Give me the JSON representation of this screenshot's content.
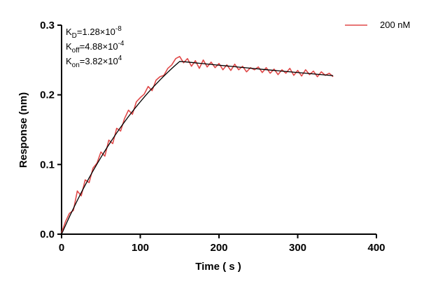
{
  "chart_data": {
    "type": "line",
    "x_label": "Time ( s )",
    "y_label": "Response (nm)",
    "xlim": [
      0,
      400
    ],
    "xticks": [
      0,
      100,
      200,
      300,
      400
    ],
    "ylim": [
      0,
      0.3
    ],
    "yticks": [
      {
        "value": 0,
        "label": "0.0"
      },
      0.1,
      0.2,
      0.3
    ],
    "legend": "upper right",
    "annotations": [
      {
        "symbol": "K",
        "subscript": "D",
        "text": "=1.28×10",
        "superscript": "-8"
      },
      {
        "symbol": "K",
        "subscript": "off",
        "text": "=4.88×10",
        "superscript": "-4"
      },
      {
        "symbol": "K",
        "subscript": "on",
        "text": "=3.82×10",
        "superscript": "4"
      }
    ],
    "x": [
      0,
      5,
      10,
      15,
      20,
      25,
      30,
      35,
      40,
      45,
      50,
      55,
      60,
      65,
      70,
      75,
      80,
      85,
      90,
      95,
      100,
      105,
      110,
      115,
      120,
      125,
      130,
      135,
      140,
      145,
      150,
      155,
      160,
      165,
      170,
      175,
      180,
      185,
      190,
      195,
      200,
      205,
      210,
      215,
      220,
      225,
      230,
      235,
      240,
      245,
      250,
      255,
      260,
      265,
      270,
      275,
      280,
      285,
      290,
      295,
      300,
      305,
      310,
      315,
      320,
      325,
      330,
      335,
      340,
      345
    ],
    "series": [
      {
        "name": "200 nM",
        "color": "#e04848",
        "values": [
          0.002,
          0.018,
          0.03,
          0.034,
          0.062,
          0.055,
          0.078,
          0.074,
          0.095,
          0.102,
          0.118,
          0.112,
          0.135,
          0.13,
          0.152,
          0.148,
          0.166,
          0.178,
          0.172,
          0.19,
          0.196,
          0.201,
          0.212,
          0.206,
          0.221,
          0.226,
          0.228,
          0.238,
          0.243,
          0.252,
          0.255,
          0.246,
          0.252,
          0.241,
          0.249,
          0.238,
          0.25,
          0.24,
          0.247,
          0.239,
          0.245,
          0.236,
          0.243,
          0.235,
          0.244,
          0.236,
          0.241,
          0.233,
          0.239,
          0.236,
          0.24,
          0.232,
          0.239,
          0.231,
          0.237,
          0.229,
          0.236,
          0.231,
          0.238,
          0.228,
          0.235,
          0.227,
          0.236,
          0.229,
          0.234,
          0.226,
          0.233,
          0.228,
          0.231,
          0.226
        ]
      }
    ],
    "fit": {
      "color": "#000000",
      "values": [
        0,
        0.0127,
        0.025,
        0.0369,
        0.0484,
        0.0596,
        0.0704,
        0.0808,
        0.0909,
        0.1007,
        0.1102,
        0.1194,
        0.1283,
        0.1369,
        0.1453,
        0.1534,
        0.1612,
        0.1688,
        0.1761,
        0.1832,
        0.19,
        0.1967,
        0.2032,
        0.2094,
        0.2154,
        0.2213,
        0.227,
        0.2325,
        0.2378,
        0.2429,
        0.2479,
        0.2476,
        0.247,
        0.2465,
        0.2459,
        0.2453,
        0.2448,
        0.2442,
        0.2437,
        0.2431,
        0.2426,
        0.242,
        0.2415,
        0.2409,
        0.2404,
        0.2398,
        0.2393,
        0.2388,
        0.2382,
        0.2377,
        0.2372,
        0.2366,
        0.2361,
        0.2356,
        0.2351,
        0.2345,
        0.234,
        0.2335,
        0.233,
        0.2325,
        0.232,
        0.2315,
        0.231,
        0.2305,
        0.23,
        0.2295,
        0.229,
        0.2285,
        0.228,
        0.2275
      ]
    }
  }
}
